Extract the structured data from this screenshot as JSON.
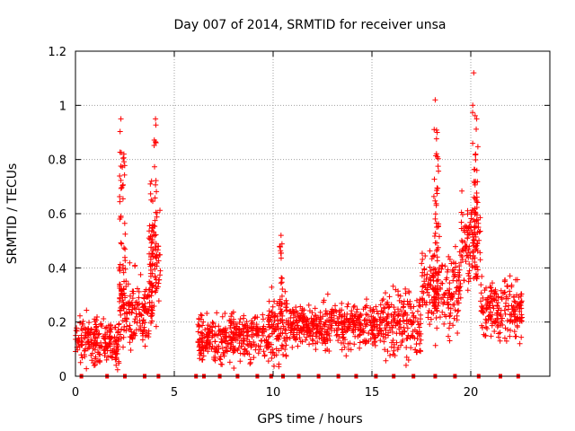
{
  "chart_data": {
    "type": "scatter",
    "title": "Day 007 of 2014, SRMTID for receiver unsa",
    "xlabel": "GPS time / hours",
    "ylabel": "SRMTID / TECUs",
    "xlim": [
      0,
      24
    ],
    "ylim": [
      0,
      1.2
    ],
    "x_ticks": [
      "0",
      "5",
      "10",
      "15",
      "20"
    ],
    "x_tick_values": [
      0,
      5,
      10,
      15,
      20
    ],
    "y_ticks": [
      "0",
      "0.2",
      "0.4",
      "0.6",
      "0.8",
      "1",
      "1.2"
    ],
    "y_tick_values": [
      0,
      0.2,
      0.4,
      0.6,
      0.8,
      1.0,
      1.2
    ],
    "grid": true,
    "marker": "+",
    "color": "#ff0000",
    "clusters": [
      {
        "x_start": 0.0,
        "x_end": 2.2,
        "y_center": 0.13,
        "y_spread": 0.07
      },
      {
        "x_start": 2.2,
        "x_end": 3.8,
        "y_center": 0.25,
        "y_spread": 0.12
      },
      {
        "x_start": 3.7,
        "x_end": 4.3,
        "y_center": 0.4,
        "y_spread": 0.16
      },
      {
        "x_start": 6.2,
        "x_end": 9.8,
        "y_center": 0.14,
        "y_spread": 0.07
      },
      {
        "x_start": 9.8,
        "x_end": 10.8,
        "y_center": 0.17,
        "y_spread": 0.1
      },
      {
        "x_start": 10.8,
        "x_end": 15.5,
        "y_center": 0.19,
        "y_spread": 0.07
      },
      {
        "x_start": 15.5,
        "x_end": 17.5,
        "y_center": 0.2,
        "y_spread": 0.1
      },
      {
        "x_start": 17.5,
        "x_end": 19.5,
        "y_center": 0.32,
        "y_spread": 0.12
      },
      {
        "x_start": 19.5,
        "x_end": 20.5,
        "y_center": 0.5,
        "y_spread": 0.14
      },
      {
        "x_start": 20.5,
        "x_end": 22.6,
        "y_center": 0.25,
        "y_spread": 0.1
      }
    ],
    "spikes": [
      {
        "x": 2.3,
        "y_min": 0.3,
        "y_max": 0.95
      },
      {
        "x": 2.45,
        "y_min": 0.25,
        "y_max": 0.82
      },
      {
        "x": 3.85,
        "y_min": 0.2,
        "y_max": 0.72
      },
      {
        "x": 4.05,
        "y_min": 0.3,
        "y_max": 0.95
      },
      {
        "x": 10.4,
        "y_min": 0.2,
        "y_max": 0.52
      },
      {
        "x": 18.2,
        "y_min": 0.25,
        "y_max": 1.02
      },
      {
        "x": 18.3,
        "y_min": 0.3,
        "y_max": 0.9
      },
      {
        "x": 20.15,
        "y_min": 0.4,
        "y_max": 1.12
      },
      {
        "x": 20.3,
        "y_min": 0.35,
        "y_max": 0.95
      }
    ],
    "baseline_marks_x": [
      0.3,
      1.6,
      2.5,
      3.5,
      4.2,
      6.1,
      6.5,
      7.3,
      8.2,
      9.2,
      9.9,
      10.5,
      11.3,
      12.3,
      13.3,
      14.2,
      15.2,
      16.1,
      17.1,
      18.2,
      19.2,
      20.4,
      21.5,
      22.4
    ]
  }
}
